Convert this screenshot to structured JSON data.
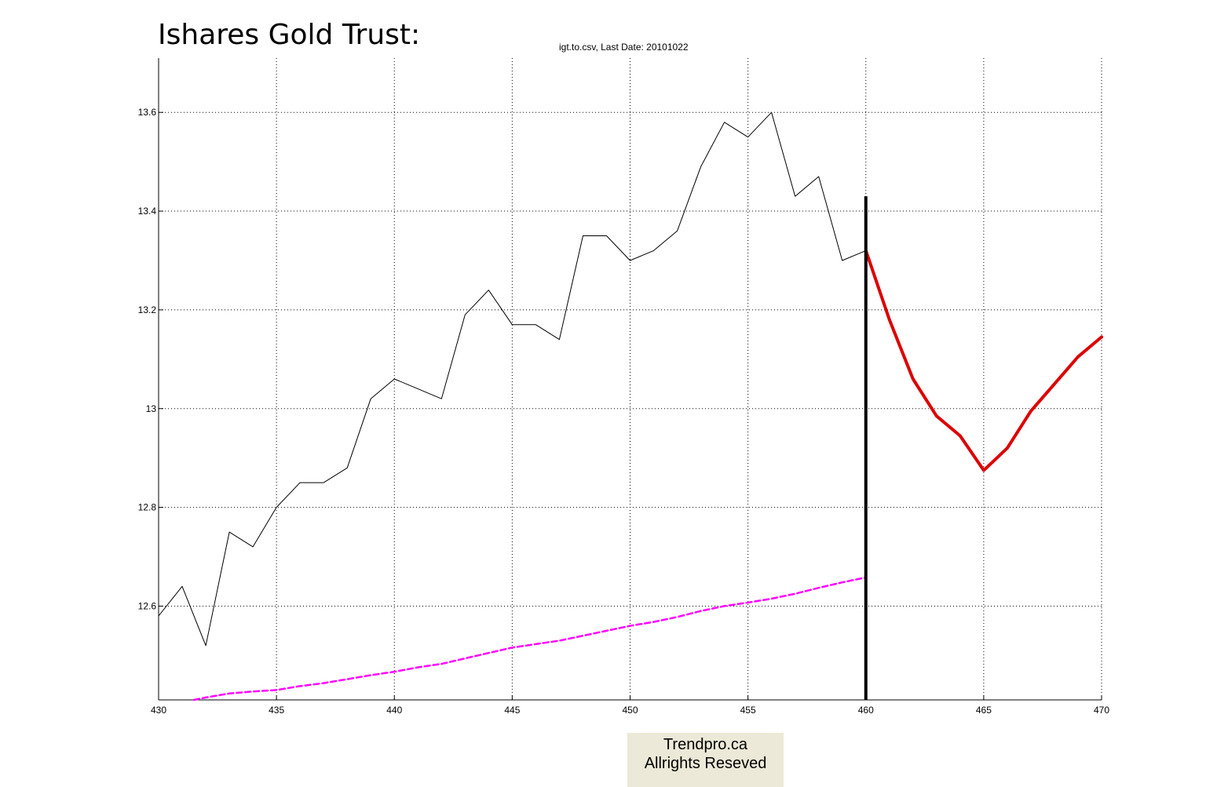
{
  "title": "Ishares Gold Trust:",
  "subtitle": "igt.to.csv, Last Date: 20101022",
  "watermark": {
    "line1": "Trendpro.ca",
    "line2": "Allrights Reseved"
  },
  "chart_data": {
    "type": "line",
    "title": "Ishares Gold Trust:",
    "subtitle": "igt.to.csv, Last Date: 20101022",
    "xlabel": "",
    "ylabel": "",
    "xlim": [
      430,
      470
    ],
    "ylim": [
      12.41,
      13.71
    ],
    "x_ticks": [
      430,
      435,
      440,
      445,
      450,
      455,
      460,
      465,
      470
    ],
    "y_ticks": [
      12.6,
      12.8,
      13,
      13.2,
      13.4,
      13.6
    ],
    "y_tick_labels": [
      "12.6",
      "12.8",
      "13",
      "13.2",
      "13.4",
      "13.6"
    ],
    "grid": true,
    "series": [
      {
        "color": "#000000",
        "style": "solid",
        "x": [
          430,
          431,
          432,
          433,
          434,
          435,
          436,
          437,
          438,
          439,
          440,
          441,
          442,
          443,
          444,
          445,
          446,
          447,
          448,
          449,
          450,
          451,
          452,
          453,
          454,
          455,
          456,
          457,
          458,
          459,
          460
        ],
        "values": [
          12.58,
          12.64,
          12.52,
          12.75,
          12.72,
          12.8,
          12.85,
          12.85,
          12.88,
          13.02,
          13.06,
          13.04,
          13.02,
          13.19,
          13.24,
          13.17,
          13.17,
          13.14,
          13.35,
          13.35,
          13.3,
          13.32,
          13.36,
          13.49,
          13.58,
          13.55,
          13.6,
          13.43,
          13.47,
          13.3,
          13.32
        ]
      },
      {
        "color": "#ff00ff",
        "style": "dashed",
        "x": [
          431.5,
          432,
          433,
          434,
          435,
          436,
          437,
          438,
          439,
          440,
          441,
          442,
          443,
          444,
          445,
          446,
          447,
          448,
          449,
          450,
          451,
          452,
          453,
          454,
          455,
          456,
          457,
          458,
          459,
          460
        ],
        "values": [
          12.41,
          12.415,
          12.423,
          12.427,
          12.43,
          12.438,
          12.444,
          12.452,
          12.46,
          12.467,
          12.476,
          12.483,
          12.494,
          12.505,
          12.516,
          12.523,
          12.53,
          12.54,
          12.55,
          12.56,
          12.568,
          12.578,
          12.59,
          12.6,
          12.607,
          12.615,
          12.625,
          12.637,
          12.648,
          12.658
        ]
      },
      {
        "color": "#dd0000",
        "style": "solid-thick",
        "x": [
          460,
          461,
          462,
          463,
          464,
          465,
          466,
          467,
          468,
          469,
          470
        ],
        "values": [
          13.32,
          13.18,
          13.06,
          12.985,
          12.945,
          12.875,
          12.92,
          12.995,
          13.05,
          13.105,
          13.145
        ]
      }
    ],
    "vertical_marker": {
      "x": 460,
      "y_top": 13.43,
      "color": "#000000"
    }
  }
}
